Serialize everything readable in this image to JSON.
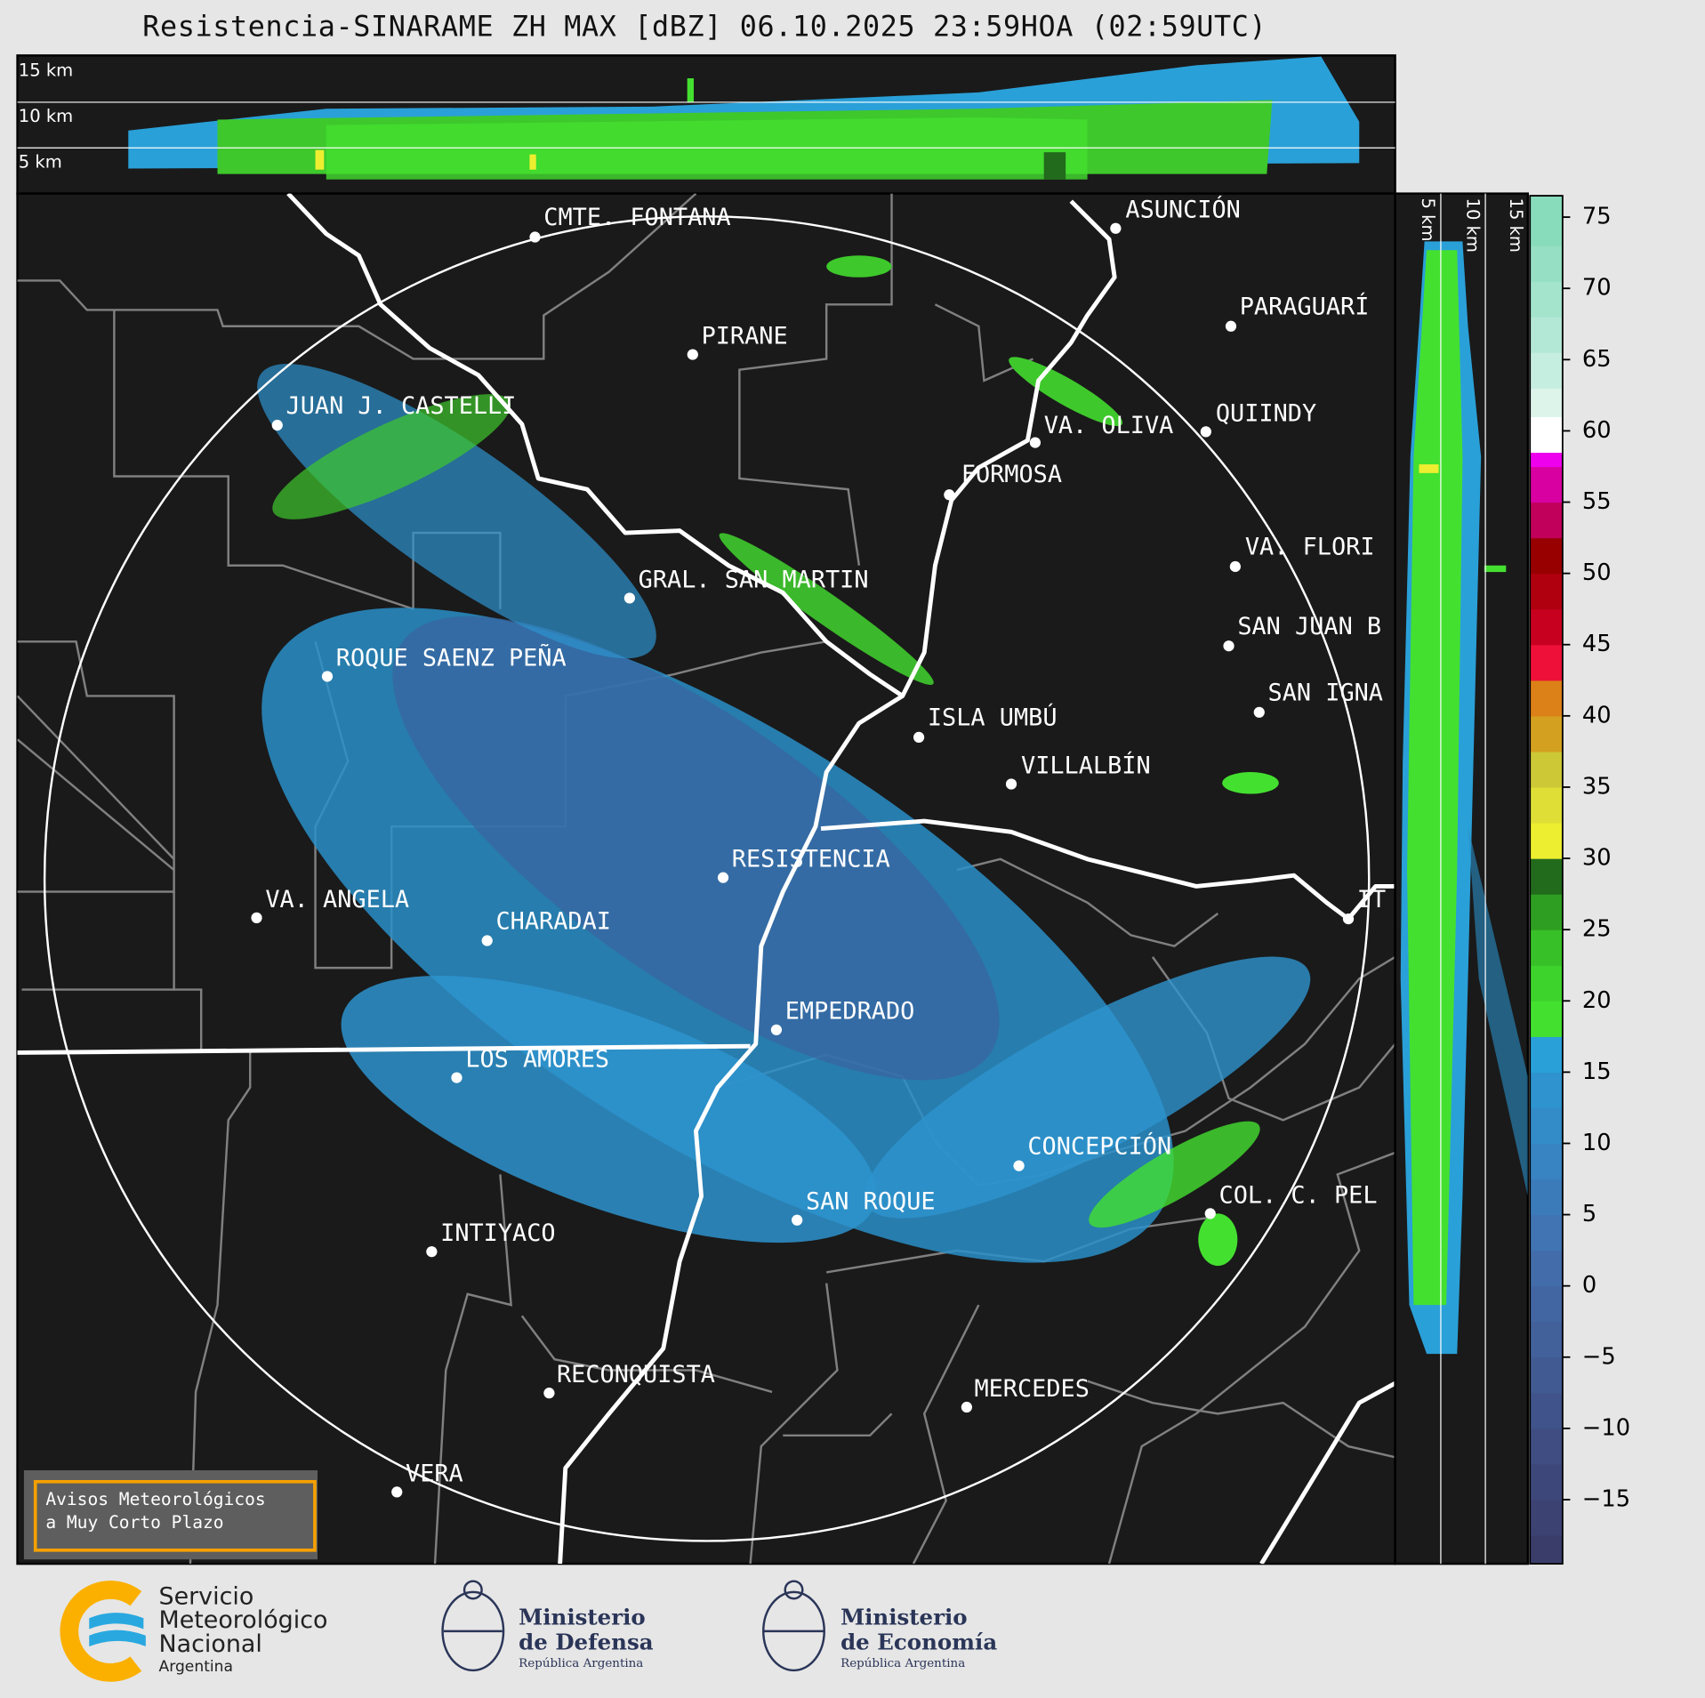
{
  "header": {
    "title": "Resistencia-SINARAME ZH MAX [dBZ] 06.10.2025 23:59HOA (02:59UTC)"
  },
  "top_section": {
    "altitude_labels": [
      "15 km",
      "10 km",
      "5 km"
    ]
  },
  "side_section": {
    "altitude_labels": [
      "5 km",
      "10 km",
      "15 km"
    ]
  },
  "map": {
    "range_ring": true,
    "cities": [
      {
        "name": "CMTE. FONTANA"
      },
      {
        "name": "ASUNCIÓN"
      },
      {
        "name": "PARAGUARÍ"
      },
      {
        "name": "PIRANE"
      },
      {
        "name": "JUAN J. CASTELLI"
      },
      {
        "name": "VA. OLIVA"
      },
      {
        "name": "QUIINDY"
      },
      {
        "name": "FORMOSA"
      },
      {
        "name": "VA. FLORI"
      },
      {
        "name": "GRAL. SAN MARTIN"
      },
      {
        "name": "SAN JUAN B"
      },
      {
        "name": "ROQUE SAENZ PEÑA"
      },
      {
        "name": "SAN IGNA"
      },
      {
        "name": "ISLA UMBÚ"
      },
      {
        "name": "VILLALBÍN"
      },
      {
        "name": "RESISTENCIA"
      },
      {
        "name": "VA. ANGELA"
      },
      {
        "name": "CHARADAI"
      },
      {
        "name": "IT"
      },
      {
        "name": "EMPEDRADO"
      },
      {
        "name": "LOS AMORES"
      },
      {
        "name": "CONCEPCIÓN"
      },
      {
        "name": "COL. C. PEL"
      },
      {
        "name": "SAN ROQUE"
      },
      {
        "name": "INTIYACO"
      },
      {
        "name": "RECONQUISTA"
      },
      {
        "name": "MERCEDES"
      },
      {
        "name": "VERA"
      }
    ]
  },
  "colorbar": {
    "unit": "dBZ",
    "range": [
      -19.5,
      76.5
    ],
    "ticks": [
      75,
      70,
      65,
      60,
      55,
      50,
      45,
      40,
      35,
      30,
      25,
      20,
      15,
      10,
      5,
      0,
      -5,
      -10,
      -15
    ],
    "bands": [
      [
        -19.5,
        -17.5,
        "#3a3d6a"
      ],
      [
        -17.5,
        -15,
        "#3c4272"
      ],
      [
        -15,
        -12.5,
        "#3e477a"
      ],
      [
        -12.5,
        -10,
        "#3f4d82"
      ],
      [
        -10,
        -7.5,
        "#40538a"
      ],
      [
        -7.5,
        -5,
        "#415a92"
      ],
      [
        -5,
        -2.5,
        "#42609a"
      ],
      [
        -2.5,
        0,
        "#4266a2"
      ],
      [
        0,
        2.5,
        "#426daa"
      ],
      [
        2.5,
        5,
        "#4074b2"
      ],
      [
        5,
        7.5,
        "#3c7bba"
      ],
      [
        7.5,
        10,
        "#3883c2"
      ],
      [
        10,
        12.5,
        "#338bc8"
      ],
      [
        12.5,
        15,
        "#2e93ce"
      ],
      [
        15,
        17.5,
        "#2aa0d8"
      ],
      [
        17.5,
        20,
        "#44e030"
      ],
      [
        20,
        22.5,
        "#3ed22c"
      ],
      [
        22.5,
        25,
        "#38c028"
      ],
      [
        25,
        27.5,
        "#2e9e22"
      ],
      [
        27.5,
        30,
        "#226a1c"
      ],
      [
        30,
        32.5,
        "#eeee30"
      ],
      [
        32.5,
        35,
        "#dede36"
      ],
      [
        35,
        37.5,
        "#ccc836"
      ],
      [
        37.5,
        40,
        "#d4a020"
      ],
      [
        40,
        42.5,
        "#dc8018"
      ],
      [
        42.5,
        45,
        "#ee1038"
      ],
      [
        45,
        47.5,
        "#c80020"
      ],
      [
        47.5,
        50,
        "#b00010"
      ],
      [
        50,
        52.5,
        "#980000"
      ],
      [
        52.5,
        55,
        "#c0005a"
      ],
      [
        55,
        57.5,
        "#d800a0"
      ],
      [
        57.5,
        60,
        "#ee00ee"
      ],
      [
        60,
        62.5,
        "#c800c8"
      ],
      [
        62.5,
        65,
        "#b000b8"
      ],
      [
        65,
        67.5,
        "#980098"
      ]
    ],
    "upper_bands": [
      [
        58.5,
        61,
        "#ffffff"
      ],
      [
        61,
        63,
        "#ddf4ea"
      ],
      [
        63,
        65.5,
        "#c6eee0"
      ],
      [
        65.5,
        68,
        "#b4e8d6"
      ],
      [
        68,
        70.5,
        "#a4e4cc"
      ],
      [
        70.5,
        73,
        "#96dfc4"
      ],
      [
        73,
        76.5,
        "#88dbbb"
      ]
    ]
  },
  "notice": {
    "line1": "Avisos Meteorológicos",
    "line2": "a Muy Corto Plazo"
  },
  "footer": {
    "smn": {
      "line1": "Servicio",
      "line2": "Meteorológico",
      "line3": "Nacional",
      "line4": "Argentina"
    },
    "defensa": {
      "line1": "Ministerio",
      "line2": "de Defensa",
      "line3": "República Argentina"
    },
    "economia": {
      "line1": "Ministerio",
      "line2": "de Economía",
      "line3": "República Argentina"
    }
  },
  "colors": {
    "background": "#e6e6e6",
    "map": "#1a1a1a",
    "notice_border": "#f5a000",
    "smn_yellow": "#fbb000",
    "smn_blue": "#29a8e0",
    "ministry_navy": "#2a3558"
  }
}
